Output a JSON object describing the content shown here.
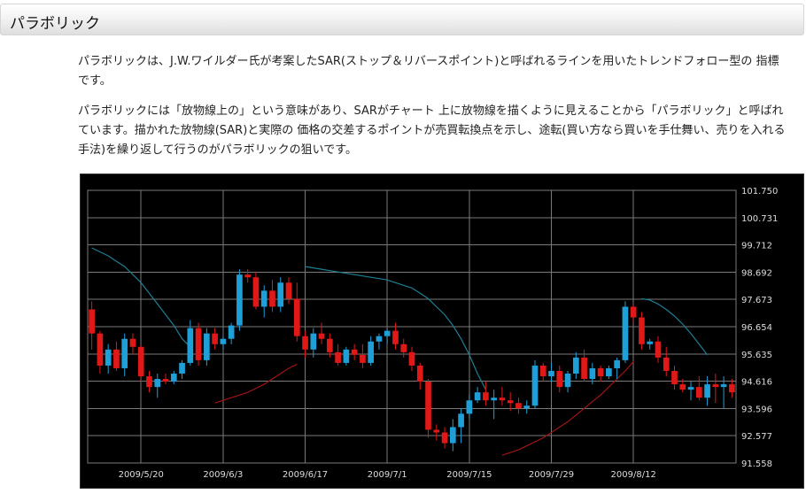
{
  "section": {
    "title": "パラボリック"
  },
  "paragraphs": [
    "パラボリックは、J.W.ワイルダー氏が考案したSAR(ストップ＆リバースポイント)と呼ばれるラインを用いたトレンドフォロー型の 指標です。",
    "パラボリックには「放物線上の」という意味があり、SARがチャート 上に放物線を描くように見えることから「パラボリック」と呼ばれています。描かれた放物線(SAR)と実際の 価格の交差するポイントが売買転換点を示し、途転(買い方なら買いを手仕舞い、売りを入れる手法)を繰り返して行うのがパラボリックの狙いです。"
  ],
  "chart_data": {
    "type": "candlestick",
    "background": "#000000",
    "colors": {
      "up": "#1e9fd8",
      "down": "#e01818",
      "sar_short": "#1e7f93",
      "sar_long": "#a01414",
      "grid": "#7a7a7a"
    },
    "grid": true,
    "ylim": [
      91.558,
      101.75
    ],
    "y_ticks": [
      "101.750",
      "100.731",
      "99.712",
      "98.692",
      "97.673",
      "96.654",
      "95.635",
      "94.616",
      "93.596",
      "92.577",
      "91.558"
    ],
    "x_ticks": [
      {
        "index": 6,
        "label": "2009/5/20"
      },
      {
        "index": 16,
        "label": "2009/6/3"
      },
      {
        "index": 26,
        "label": "2009/6/17"
      },
      {
        "index": 36,
        "label": "2009/7/1"
      },
      {
        "index": 46,
        "label": "2009/7/15"
      },
      {
        "index": 56,
        "label": "2009/7/29"
      },
      {
        "index": 66,
        "label": "2009/8/12"
      }
    ],
    "candles": [
      [
        97.3,
        97.6,
        95.8,
        96.4
      ],
      [
        96.4,
        96.5,
        94.9,
        95.2
      ],
      [
        95.2,
        96.0,
        94.9,
        95.8
      ],
      [
        95.8,
        96.1,
        95.0,
        95.1
      ],
      [
        95.1,
        96.4,
        94.8,
        96.2
      ],
      [
        96.2,
        96.4,
        95.6,
        95.9
      ],
      [
        95.9,
        96.0,
        94.6,
        94.8
      ],
      [
        94.8,
        95.0,
        94.2,
        94.4
      ],
      [
        94.4,
        94.9,
        94.0,
        94.7
      ],
      [
        94.7,
        94.9,
        94.5,
        94.6
      ],
      [
        94.6,
        95.0,
        94.5,
        94.9
      ],
      [
        94.9,
        95.4,
        94.7,
        95.3
      ],
      [
        95.3,
        96.9,
        95.2,
        96.6
      ],
      [
        96.6,
        96.8,
        95.2,
        95.4
      ],
      [
        95.4,
        96.6,
        95.2,
        96.4
      ],
      [
        96.4,
        96.6,
        95.8,
        96.0
      ],
      [
        96.0,
        96.3,
        95.8,
        96.2
      ],
      [
        96.2,
        96.8,
        96.0,
        96.7
      ],
      [
        96.7,
        98.8,
        96.5,
        98.6
      ],
      [
        98.6,
        98.8,
        98.3,
        98.5
      ],
      [
        98.5,
        98.7,
        97.3,
        97.4
      ],
      [
        97.4,
        98.2,
        97.0,
        98.0
      ],
      [
        98.0,
        98.4,
        97.2,
        97.4
      ],
      [
        97.4,
        98.5,
        97.2,
        98.3
      ],
      [
        98.3,
        98.5,
        97.5,
        97.7
      ],
      [
        97.7,
        98.3,
        96.1,
        96.3
      ],
      [
        96.3,
        96.5,
        95.5,
        95.8
      ],
      [
        95.8,
        96.6,
        95.5,
        96.4
      ],
      [
        96.4,
        96.8,
        96.0,
        96.2
      ],
      [
        96.2,
        96.4,
        95.5,
        95.7
      ],
      [
        95.7,
        96.0,
        95.2,
        95.3
      ],
      [
        95.3,
        95.9,
        95.2,
        95.8
      ],
      [
        95.8,
        96.0,
        95.4,
        95.6
      ],
      [
        95.6,
        96.0,
        95.1,
        95.3
      ],
      [
        95.3,
        96.3,
        95.2,
        96.1
      ],
      [
        96.1,
        96.4,
        95.8,
        96.3
      ],
      [
        96.3,
        96.6,
        96.0,
        96.5
      ],
      [
        96.5,
        96.8,
        95.8,
        96.0
      ],
      [
        96.0,
        96.2,
        95.5,
        95.7
      ],
      [
        95.7,
        95.9,
        95.0,
        95.2
      ],
      [
        95.2,
        95.3,
        94.3,
        94.6
      ],
      [
        94.6,
        94.7,
        92.5,
        92.8
      ],
      [
        92.8,
        93.0,
        92.4,
        92.7
      ],
      [
        92.7,
        92.9,
        92.1,
        92.3
      ],
      [
        92.3,
        93.2,
        92.0,
        92.9
      ],
      [
        92.9,
        93.6,
        92.3,
        93.4
      ],
      [
        93.4,
        94.1,
        93.2,
        93.9
      ],
      [
        93.9,
        94.4,
        93.8,
        94.2
      ],
      [
        94.2,
        94.6,
        93.7,
        93.9
      ],
      [
        93.9,
        94.3,
        93.2,
        94.0
      ],
      [
        94.0,
        94.4,
        93.7,
        93.9
      ],
      [
        93.9,
        94.2,
        93.5,
        93.8
      ],
      [
        93.8,
        94.0,
        93.4,
        93.6
      ],
      [
        93.6,
        93.9,
        93.4,
        93.7
      ],
      [
        93.7,
        95.4,
        93.6,
        95.2
      ],
      [
        95.2,
        95.3,
        94.6,
        94.8
      ],
      [
        94.8,
        95.3,
        94.6,
        95.0
      ],
      [
        95.0,
        95.2,
        94.2,
        94.4
      ],
      [
        94.4,
        95.0,
        94.2,
        94.9
      ],
      [
        94.9,
        95.7,
        94.7,
        95.5
      ],
      [
        95.5,
        95.8,
        94.6,
        94.7
      ],
      [
        94.7,
        95.3,
        94.5,
        95.1
      ],
      [
        95.1,
        95.2,
        94.6,
        94.8
      ],
      [
        94.8,
        95.2,
        94.7,
        95.1
      ],
      [
        95.1,
        95.5,
        94.7,
        95.4
      ],
      [
        95.4,
        97.6,
        95.3,
        97.4
      ],
      [
        97.4,
        97.5,
        96.8,
        97.0
      ],
      [
        97.0,
        97.2,
        95.8,
        96.0
      ],
      [
        96.0,
        96.2,
        95.8,
        96.1
      ],
      [
        96.1,
        96.3,
        95.3,
        95.5
      ],
      [
        95.5,
        95.9,
        94.8,
        95.0
      ],
      [
        95.0,
        95.2,
        94.3,
        94.5
      ],
      [
        94.5,
        94.7,
        94.2,
        94.3
      ],
      [
        94.3,
        94.6,
        93.9,
        94.4
      ],
      [
        94.4,
        94.8,
        93.9,
        94.0
      ],
      [
        94.0,
        94.8,
        93.7,
        94.5
      ],
      [
        94.5,
        94.9,
        93.8,
        94.4
      ],
      [
        94.4,
        94.8,
        93.6,
        94.5
      ],
      [
        94.5,
        94.7,
        94.0,
        94.2
      ]
    ],
    "sar": [
      {
        "start": 0,
        "values": [
          99.6,
          99.45,
          99.3,
          99.1,
          98.9,
          98.6,
          98.3,
          97.9,
          97.5,
          97.1,
          96.7,
          96.2,
          95.9
        ]
      },
      {
        "start": 15,
        "values": [
          93.8,
          93.9,
          94.0,
          94.1,
          94.2,
          94.35,
          94.5,
          94.7,
          94.9,
          95.1,
          95.25
        ]
      },
      {
        "start": 26,
        "values": [
          98.9,
          98.85,
          98.8,
          98.75,
          98.7,
          98.65,
          98.6,
          98.55,
          98.5,
          98.45,
          98.4,
          98.3,
          98.2,
          98.1,
          97.9,
          97.7,
          97.4,
          97.1,
          96.7,
          96.2,
          95.6,
          94.9,
          94.3
        ]
      },
      {
        "start": 50,
        "values": [
          91.85,
          91.95,
          92.05,
          92.2,
          92.35,
          92.5,
          92.7,
          92.9,
          93.1,
          93.35,
          93.6,
          93.85,
          94.1,
          94.4,
          94.7,
          95.0,
          95.35
        ]
      },
      {
        "start": 67,
        "values": [
          97.7,
          97.65,
          97.5,
          97.3,
          97.05,
          96.75,
          96.4,
          96.0,
          95.6
        ]
      }
    ]
  }
}
